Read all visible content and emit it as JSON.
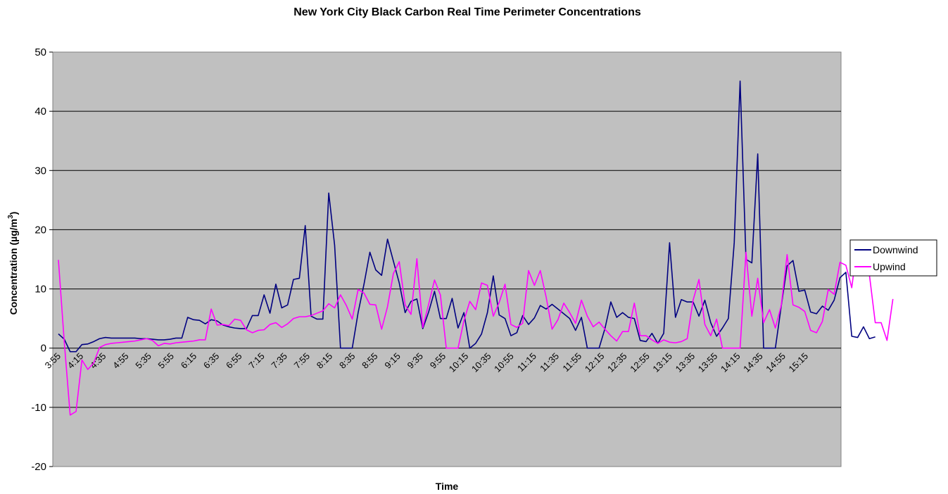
{
  "chart_data": {
    "type": "line",
    "title": "New York City Black Carbon Real Time Perimeter Concentrations",
    "xlabel": "Time",
    "ylabel": "Concentration (µg/m",
    "ylabel_sup": "3",
    "ylabel_close": ")",
    "ylim": [
      -20,
      50
    ],
    "yticks": [
      -20,
      -10,
      0,
      10,
      20,
      30,
      40,
      50
    ],
    "grid": true,
    "legend_position": "right",
    "x_labels": [
      "3:55",
      "4:15",
      "4:35",
      "4:55",
      "5:35",
      "5:55",
      "6:15",
      "6:35",
      "6:55",
      "7:15",
      "7:35",
      "7:55",
      "8:15",
      "8:35",
      "8:55",
      "9:15",
      "9:35",
      "9:55",
      "10:15",
      "10:35",
      "10:55",
      "11:15",
      "11:35",
      "11:55",
      "12:15",
      "12:35",
      "12:55",
      "13:15",
      "13:35",
      "13:55",
      "14:15",
      "14:35",
      "14:55",
      "15:15"
    ],
    "series": [
      {
        "name": "Downwind",
        "color": "#000080",
        "values": [
          2.4,
          1.5,
          -0.6,
          -0.6,
          0.6,
          0.7,
          1.1,
          1.6,
          1.8,
          1.7,
          1.7,
          1.7,
          1.7,
          1.7,
          1.6,
          1.6,
          1.5,
          1.4,
          1.4,
          1.5,
          1.7,
          1.7,
          5.2,
          4.8,
          4.7,
          4.1,
          4.8,
          4.6,
          3.9,
          3.6,
          3.4,
          3.3,
          3.3,
          5.5,
          5.5,
          9.0,
          5.9,
          10.8,
          6.8,
          7.3,
          11.6,
          11.8,
          20.7,
          5.4,
          4.9,
          4.9,
          26.2,
          17.4,
          0,
          0,
          0,
          6.0,
          10.8,
          16.2,
          13.2,
          12.3,
          18.4,
          14.7,
          11.0,
          6.0,
          7.9,
          8.3,
          3.3,
          6.1,
          9.6,
          5.0,
          5.0,
          8.4,
          3.4,
          6.0,
          0,
          0.8,
          2.4,
          6.0,
          12.2,
          5.6,
          5.0,
          2.1,
          2.6,
          5.5,
          4.0,
          5.1,
          7.2,
          6.6,
          7.4,
          6.6,
          5.8,
          5.0,
          3.0,
          5.2,
          0,
          0,
          0,
          3.3,
          7.8,
          5.2,
          6.0,
          5.2,
          5.0,
          1.3,
          1.1,
          2.5,
          0.8,
          2.5,
          17.8,
          5.2,
          8.2,
          7.8,
          7.8,
          5.4,
          8.1,
          4.3,
          2.0,
          3.4,
          5.0,
          17.8,
          45.1,
          15.0,
          14.4,
          32.8,
          0,
          0,
          0,
          7.1,
          13.9,
          14.8,
          9.6,
          9.8,
          6.1,
          5.8,
          7.1,
          6.4,
          8.1,
          11.9,
          12.8,
          2.0,
          1.8,
          3.6,
          1.6,
          1.9
        ]
      },
      {
        "name": "Upwind",
        "color": "#ff00ff",
        "values": [
          14.9,
          1.0,
          -11.3,
          -10.7,
          -2.0,
          -3.6,
          -2.5,
          0.1,
          0.6,
          0.8,
          0.9,
          1.0,
          1.1,
          1.2,
          1.4,
          1.6,
          1.3,
          0.4,
          0.8,
          0.7,
          0.9,
          1.0,
          1.1,
          1.2,
          1.4,
          1.4,
          6.6,
          3.9,
          4.0,
          3.8,
          4.9,
          4.7,
          3.1,
          2.6,
          3.0,
          3.1,
          4.0,
          4.3,
          3.5,
          4.1,
          5.0,
          5.3,
          5.3,
          5.5,
          5.9,
          6.3,
          7.5,
          6.8,
          9.0,
          7.2,
          4.9,
          9.9,
          9.3,
          7.4,
          7.3,
          3.2,
          7.0,
          12.6,
          14.6,
          7.3,
          5.7,
          15.1,
          3.5,
          7.4,
          11.5,
          9.0,
          0,
          0,
          0,
          4.6,
          7.9,
          6.5,
          11.0,
          10.6,
          5.4,
          7.7,
          10.8,
          4.0,
          3.5,
          4.2,
          13.1,
          10.6,
          13.1,
          8.6,
          3.2,
          4.8,
          7.6,
          6.0,
          4.2,
          8.1,
          5.4,
          3.6,
          4.4,
          3.2,
          2.1,
          1.2,
          2.8,
          2.8,
          7.6,
          2.1,
          2.1,
          1.4,
          0.8,
          1.4,
          1.0,
          0.9,
          1.1,
          1.6,
          8.1,
          11.6,
          4.0,
          2.1,
          4.9,
          0,
          0,
          0,
          0,
          16.2,
          5.4,
          11.8,
          4.3,
          6.5,
          3.4,
          7.2,
          15.8,
          7.3,
          6.9,
          6.2,
          3.0,
          2.6,
          4.5,
          9.9,
          9.1,
          14.5,
          14.0,
          10.2,
          18.0,
          17.7,
          12.4,
          4.3,
          4.3,
          1.3,
          8.3
        ]
      }
    ]
  }
}
